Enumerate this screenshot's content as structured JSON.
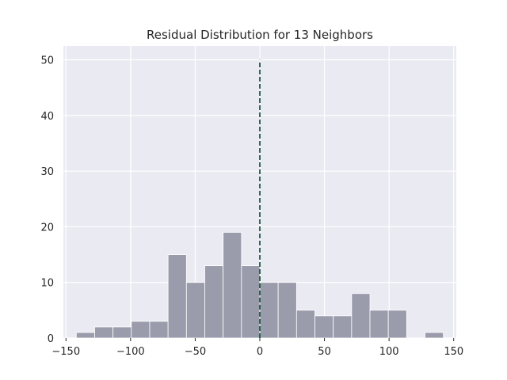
{
  "chart_data": {
    "type": "bar",
    "title": "Residual Distribution for 13 Neighbors",
    "xlabel": "",
    "ylabel": "",
    "xlim": [
      -152,
      152
    ],
    "ylim": [
      0,
      52.5
    ],
    "x_ticks": [
      -150,
      -100,
      -50,
      0,
      50,
      100,
      150
    ],
    "y_ticks": [
      0,
      10,
      20,
      30,
      40,
      50
    ],
    "bin_width": 14.2,
    "bins": [
      {
        "left": -142,
        "count": 1
      },
      {
        "left": -127.8,
        "count": 2
      },
      {
        "left": -113.6,
        "count": 2
      },
      {
        "left": -99.4,
        "count": 3
      },
      {
        "left": -85.2,
        "count": 3
      },
      {
        "left": -71.0,
        "count": 15
      },
      {
        "left": -56.8,
        "count": 10
      },
      {
        "left": -42.6,
        "count": 13
      },
      {
        "left": -28.4,
        "count": 19
      },
      {
        "left": -14.2,
        "count": 13
      },
      {
        "left": 0.0,
        "count": 10
      },
      {
        "left": 14.2,
        "count": 10
      },
      {
        "left": 28.4,
        "count": 5
      },
      {
        "left": 42.6,
        "count": 4
      },
      {
        "left": 56.8,
        "count": 4
      },
      {
        "left": 71.0,
        "count": 8
      },
      {
        "left": 85.2,
        "count": 5
      },
      {
        "left": 99.4,
        "count": 5
      },
      {
        "left": 113.6,
        "count": 0
      },
      {
        "left": 127.8,
        "count": 1
      }
    ],
    "reference_line": {
      "x": 0,
      "y_range": [
        0,
        50
      ],
      "style": "dashed"
    },
    "grid": true,
    "legend": "none",
    "colors": {
      "background": "#eaeaf2",
      "grid": "#ffffff",
      "bar": "#9a9cac",
      "reference_line": "#1f5c40",
      "text": "#262626"
    }
  }
}
